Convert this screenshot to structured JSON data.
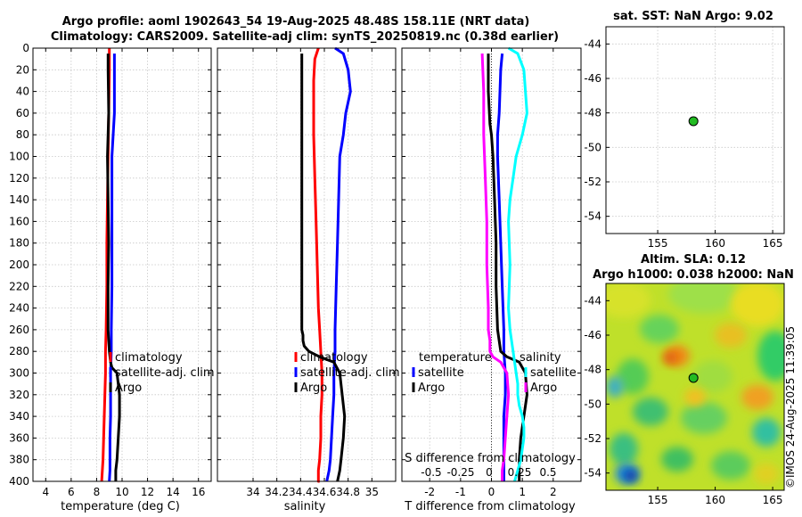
{
  "title_line1": "Argo profile: aoml 1902643_54 19-Aug-2025 48.48S 158.11E (NRT data)",
  "title_line2": "Climatology: CARS2009. Satellite-adj clim: synTS_20250819.nc (0.38d earlier)",
  "timestamp": "©IMOS 24-Aug-2025 11:39:05",
  "colors": {
    "climatology": "#ff0000",
    "satellite": "#0000ff",
    "argo": "#000000",
    "cyan": "#00ffff",
    "magenta": "#ff00ff",
    "grid": "#c8c8c8",
    "marker": "#22bb22"
  },
  "chart_data": [
    {
      "id": "temperature",
      "type": "line",
      "xlabel": "temperature (deg C)",
      "ylabel": "",
      "xlim": [
        3,
        17
      ],
      "ylim": [
        400,
        0
      ],
      "xticks": [
        4,
        6,
        8,
        10,
        12,
        14,
        16
      ],
      "yticks": [
        0,
        20,
        40,
        60,
        80,
        100,
        120,
        140,
        160,
        180,
        200,
        220,
        240,
        260,
        280,
        300,
        320,
        340,
        360,
        380,
        400
      ],
      "legend": [
        "climatology",
        "satellite-adj. clim",
        "Argo"
      ],
      "series": [
        {
          "name": "climatology",
          "color": "#ff0000",
          "x": [
            9.0,
            9.0,
            8.95,
            8.9,
            8.85,
            8.8,
            8.8,
            8.75,
            8.7,
            8.7,
            8.65,
            8.6,
            8.55,
            8.5,
            8.4
          ],
          "depth": [
            0,
            20,
            60,
            100,
            140,
            180,
            220,
            260,
            280,
            300,
            320,
            340,
            360,
            380,
            400
          ]
        },
        {
          "name": "satellite-adj. clim",
          "color": "#0000ff",
          "x": [
            9.4,
            9.4,
            9.4,
            9.3,
            9.2,
            9.2,
            9.2,
            9.2,
            9.15,
            9.15,
            9.1,
            9.1,
            9.1,
            9.05,
            9.05,
            9.05,
            9.0
          ],
          "depth": [
            5,
            20,
            60,
            80,
            100,
            140,
            180,
            220,
            260,
            280,
            300,
            320,
            340,
            360,
            380,
            390,
            400
          ]
        },
        {
          "name": "Argo",
          "color": "#000000",
          "x": [
            8.9,
            8.9,
            8.95,
            8.9,
            8.85,
            8.9,
            8.95,
            8.9,
            8.9,
            9.0,
            9.05,
            9.1,
            9.2,
            9.6,
            9.8,
            9.8,
            9.7,
            9.6,
            9.5,
            9.5
          ],
          "depth": [
            5,
            20,
            60,
            80,
            100,
            140,
            180,
            220,
            260,
            280,
            285,
            290,
            295,
            300,
            320,
            340,
            360,
            380,
            390,
            400
          ]
        }
      ]
    },
    {
      "id": "salinity",
      "type": "line",
      "xlabel": "salinity",
      "ylabel": "",
      "xlim": [
        33.7,
        35.2
      ],
      "ylim": [
        400,
        0
      ],
      "xticks": [
        34,
        34.2,
        34.4,
        34.6,
        34.8,
        35
      ],
      "xticklabels": [
        "34",
        "34.2",
        "34.4",
        "34.6",
        "34.8",
        "35"
      ],
      "legend": [
        "climatology",
        "satellite-adj. clim",
        "Argo"
      ],
      "series": [
        {
          "name": "climatology",
          "color": "#ff0000",
          "x": [
            34.55,
            34.52,
            34.51,
            34.51,
            34.52,
            34.53,
            34.54,
            34.55,
            34.56,
            34.57,
            34.58,
            34.58,
            34.57,
            34.57,
            34.56,
            34.55,
            34.55,
            34.55,
            34.56,
            34.56
          ],
          "depth": [
            0,
            10,
            30,
            80,
            120,
            160,
            200,
            240,
            260,
            280,
            300,
            320,
            340,
            360,
            380,
            390,
            400,
            400,
            400,
            400
          ]
        },
        {
          "name": "satellite-adj. clim",
          "color": "#0000ff",
          "x": [
            34.69,
            34.76,
            34.8,
            34.82,
            34.78,
            34.76,
            34.73,
            34.72,
            34.71,
            34.7,
            34.69,
            34.69,
            34.68,
            34.68,
            34.67,
            34.66,
            34.65,
            34.64,
            34.63,
            34.62
          ],
          "depth": [
            0,
            5,
            20,
            40,
            60,
            80,
            100,
            140,
            180,
            220,
            260,
            280,
            300,
            320,
            340,
            360,
            380,
            390,
            395,
            400
          ]
        },
        {
          "name": "Argo",
          "color": "#000000",
          "x": [
            34.41,
            34.41,
            34.41,
            34.41,
            34.41,
            34.41,
            34.42,
            34.42,
            34.43,
            34.47,
            34.56,
            34.68,
            34.73,
            34.75,
            34.77,
            34.76,
            34.74,
            34.73,
            34.72,
            34.71
          ],
          "depth": [
            5,
            40,
            100,
            160,
            220,
            260,
            265,
            270,
            275,
            280,
            285,
            290,
            300,
            320,
            340,
            360,
            380,
            390,
            395,
            400
          ]
        }
      ]
    },
    {
      "id": "difference",
      "type": "line",
      "xlabel": "T difference from climatology",
      "xlim": [
        -2.9,
        2.9
      ],
      "ylim": [
        400,
        0
      ],
      "xticks": [
        -2,
        -1,
        0,
        1,
        2
      ],
      "top_axis_label": "S difference from climatology",
      "top_xticks": [
        "-0.5",
        "-0.25",
        "0",
        "0.25",
        "0.5"
      ],
      "legend_left_title": "temperature",
      "legend_right_title": "salinity",
      "legend_left": [
        "satellite",
        "Argo"
      ],
      "legend_right": [
        "satellite",
        "Argo"
      ],
      "series": [
        {
          "name": "T satellite",
          "color": "#0000ff",
          "x": [
            0.35,
            0.3,
            0.25,
            0.2,
            0.2,
            0.25,
            0.3,
            0.35,
            0.4,
            0.4,
            0.45,
            0.45,
            0.4,
            0.4,
            0.4,
            0.4,
            0.4
          ],
          "depth": [
            5,
            20,
            60,
            80,
            100,
            140,
            180,
            220,
            260,
            280,
            300,
            320,
            340,
            360,
            380,
            390,
            400
          ]
        },
        {
          "name": "T Argo",
          "color": "#000000",
          "x": [
            -0.1,
            -0.1,
            -0.05,
            0.0,
            0.05,
            0.1,
            0.15,
            0.15,
            0.2,
            0.3,
            0.5,
            0.9,
            1.1,
            1.15,
            1.05,
            0.95,
            0.9,
            0.9,
            0.9
          ],
          "depth": [
            5,
            40,
            70,
            80,
            100,
            140,
            180,
            220,
            260,
            280,
            285,
            290,
            300,
            320,
            340,
            360,
            380,
            390,
            400
          ]
        },
        {
          "name": "S satellite",
          "color": "#00ffff",
          "x": [
            0.55,
            0.85,
            1.05,
            1.15,
            1.0,
            0.8,
            0.7,
            0.6,
            0.55,
            0.6,
            0.55,
            0.6,
            0.7,
            0.75,
            0.8,
            0.85,
            0.85,
            0.9,
            1.0,
            1.05,
            1.05,
            0.95,
            0.85,
            0.75
          ],
          "depth": [
            0,
            5,
            20,
            60,
            80,
            100,
            120,
            140,
            160,
            200,
            240,
            260,
            280,
            290,
            300,
            310,
            320,
            330,
            340,
            350,
            360,
            380,
            390,
            400
          ]
        },
        {
          "name": "S Argo",
          "color": "#ff00ff",
          "x": [
            -0.3,
            -0.25,
            -0.25,
            -0.2,
            -0.15,
            -0.15,
            -0.1,
            -0.1,
            -0.05,
            -0.05,
            -0.05,
            0.05,
            0.3,
            0.5,
            0.55,
            0.5,
            0.45,
            0.4,
            0.35,
            0.35
          ],
          "depth": [
            5,
            40,
            80,
            120,
            160,
            200,
            240,
            260,
            270,
            275,
            280,
            285,
            290,
            300,
            320,
            340,
            360,
            380,
            390,
            400
          ]
        }
      ]
    },
    {
      "id": "sst_map",
      "type": "scatter",
      "title": "sat. SST: NaN Argo: 9.02",
      "xlim": [
        150.5,
        166
      ],
      "ylim": [
        -55,
        -43
      ],
      "xticks": [
        155,
        160,
        165
      ],
      "yticks": [
        -44,
        -46,
        -48,
        -50,
        -52,
        -54
      ],
      "point": {
        "lon": 158.11,
        "lat": -48.48
      }
    },
    {
      "id": "sla_map",
      "type": "heatmap",
      "title_line1": "Altim. SLA: 0.12",
      "title_line2": "Argo h1000: 0.038 h2000: NaN",
      "xlim": [
        150.5,
        166
      ],
      "ylim": [
        -55,
        -43
      ],
      "xticks": [
        155,
        160,
        165
      ],
      "yticks": [
        -44,
        -46,
        -48,
        -50,
        -52,
        -54
      ],
      "point": {
        "lon": 158.11,
        "lat": -48.48
      }
    }
  ]
}
